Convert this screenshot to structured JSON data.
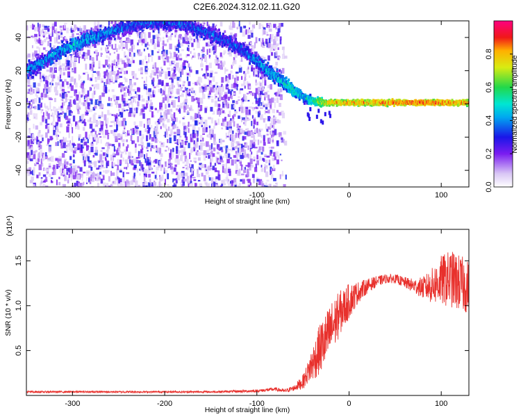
{
  "title": "C2E6.2024.312.02.11.G20",
  "chart_data": [
    {
      "type": "heatmap",
      "xlabel": "Height of straight line (km)",
      "ylabel": "Frequency (Hz)",
      "xlim": [
        -350,
        130
      ],
      "ylim": [
        -50,
        50
      ],
      "xticks": [
        -300,
        -200,
        -100,
        0,
        100
      ],
      "xtick_labels": [
        "-300",
        "-200",
        "-100",
        "0",
        "100"
      ],
      "yticks": [
        -40,
        -20,
        0,
        20,
        40
      ],
      "ytick_labels": [
        "-40",
        "-20",
        "0",
        "20",
        "40"
      ],
      "colorbar": {
        "label": "Normalized spectral amplitude",
        "range": [
          0,
          1
        ],
        "ticks": [
          0.0,
          0.2,
          0.4,
          0.6,
          0.8
        ],
        "tick_labels": [
          "0.0",
          "0.2",
          "0.4",
          "0.6",
          "0.8"
        ],
        "colormap": "white-violet-blue-cyan-green-yellow-red-magenta"
      },
      "ridge": {
        "x": [
          -350,
          -320,
          -300,
          -270,
          -240,
          -220,
          -200,
          -180,
          -150,
          -120,
          -100,
          -80,
          -60,
          -50,
          -40,
          -30,
          -20,
          0,
          50,
          100,
          130
        ],
        "y": [
          20,
          30,
          36,
          42,
          47,
          49,
          49,
          48,
          42,
          34,
          25,
          16,
          8,
          4,
          2,
          1,
          1,
          1,
          1,
          1,
          1
        ],
        "amplitude": [
          0.4,
          0.4,
          0.45,
          0.4,
          0.35,
          0.35,
          0.35,
          0.35,
          0.35,
          0.35,
          0.4,
          0.45,
          0.5,
          0.45,
          0.55,
          0.7,
          0.8,
          0.8,
          0.85,
          0.85,
          0.8
        ]
      },
      "background": {
        "x_range": [
          -350,
          -80
        ],
        "amplitude_range": [
          0.05,
          0.3
        ]
      }
    },
    {
      "type": "line",
      "xlabel": "Height of straight line (km)",
      "ylabel": "SNR (10 * v/v)",
      "multiplier": "(x10⁴)",
      "xlim": [
        -350,
        130
      ],
      "ylim": [
        0,
        1.85
      ],
      "xticks": [
        -300,
        -200,
        -100,
        0,
        100
      ],
      "xtick_labels": [
        "-300",
        "-200",
        "-100",
        "0",
        "100"
      ],
      "yticks": [
        0.5,
        1.0,
        1.5
      ],
      "ytick_labels": [
        "0.5",
        "1.0",
        "1.5"
      ],
      "color": "#e8302c",
      "series": [
        {
          "x": [
            -350,
            -300,
            -200,
            -150,
            -100,
            -80,
            -70,
            -60,
            -50,
            -45,
            -40,
            -35,
            -30,
            -25,
            -20,
            -15,
            -10,
            -5,
            0,
            10,
            20,
            30,
            40,
            50,
            60,
            70,
            80,
            90,
            100,
            110,
            120,
            130
          ],
          "y": [
            0.04,
            0.04,
            0.04,
            0.04,
            0.05,
            0.07,
            0.05,
            0.08,
            0.15,
            0.25,
            0.35,
            0.45,
            0.55,
            0.62,
            0.72,
            0.82,
            0.92,
            0.98,
            1.05,
            1.15,
            1.22,
            1.27,
            1.3,
            1.3,
            1.26,
            1.22,
            1.2,
            1.22,
            1.28,
            1.3,
            1.25,
            1.2
          ],
          "noise": [
            0.01,
            0.01,
            0.01,
            0.01,
            0.015,
            0.02,
            0.02,
            0.03,
            0.08,
            0.12,
            0.2,
            0.25,
            0.3,
            0.3,
            0.32,
            0.28,
            0.25,
            0.22,
            0.2,
            0.12,
            0.08,
            0.06,
            0.05,
            0.05,
            0.06,
            0.08,
            0.12,
            0.2,
            0.28,
            0.32,
            0.32,
            0.3
          ]
        }
      ]
    }
  ]
}
